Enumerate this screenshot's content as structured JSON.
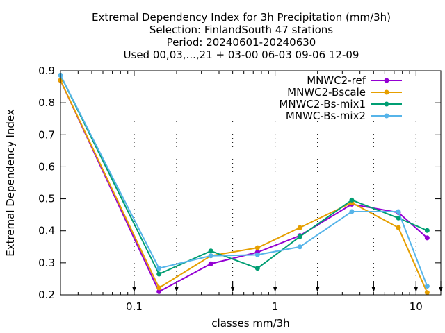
{
  "chart_data": {
    "type": "line",
    "title": [
      "Extremal Dependency Index  for 3h Precipitation (mm/3h)",
      "Selection: FinlandSouth     47 stations",
      "Period: 20240601-20240630",
      "Used 00,03,...,21 + 03-00 06-03 09-06 12-09"
    ],
    "xlabel": "classes mm/3h",
    "ylabel": "Extremal Dependency Index",
    "xscale": "log",
    "xlim": [
      0.03,
      15
    ],
    "ylim": [
      0.2,
      0.9
    ],
    "xticks": [
      {
        "value": 0.1,
        "label": "0.1"
      },
      {
        "value": 1,
        "label": "1"
      },
      {
        "value": 10,
        "label": "10"
      }
    ],
    "yticks": [
      {
        "value": 0.2,
        "label": "0.2"
      },
      {
        "value": 0.3,
        "label": "0.3"
      },
      {
        "value": 0.4,
        "label": "0.4"
      },
      {
        "value": 0.5,
        "label": "0.5"
      },
      {
        "value": 0.6,
        "label": "0.6"
      },
      {
        "value": 0.7,
        "label": "0.7"
      },
      {
        "value": 0.8,
        "label": "0.8"
      },
      {
        "value": 0.9,
        "label": "0.9"
      }
    ],
    "arrow_markers_x": [
      0.1,
      0.2,
      0.5,
      1,
      2,
      5,
      10,
      15
    ],
    "legend_position": "top-right",
    "grid": false,
    "x": [
      0.03,
      0.15,
      0.35,
      0.75,
      1.5,
      3.5,
      7.5,
      12
    ],
    "series": [
      {
        "name": "MNWC2-ref",
        "color": "#9400d3",
        "values": [
          0.87,
          0.21,
          0.297,
          0.333,
          0.385,
          0.483,
          0.457,
          0.378
        ]
      },
      {
        "name": "MNWC2-Bscale",
        "color": "#e69f00",
        "values": [
          0.87,
          0.222,
          0.322,
          0.347,
          0.41,
          0.488,
          0.41,
          0.207
        ]
      },
      {
        "name": "MNWC2-Bs-mix1",
        "color": "#009e73",
        "values": [
          0.886,
          0.265,
          0.337,
          0.283,
          0.382,
          0.496,
          0.44,
          0.401
        ]
      },
      {
        "name": "MNWC-Bs-mix2",
        "color": "#56b4e9",
        "values": [
          0.886,
          0.283,
          0.322,
          0.325,
          0.35,
          0.46,
          0.46,
          0.227
        ]
      }
    ]
  }
}
